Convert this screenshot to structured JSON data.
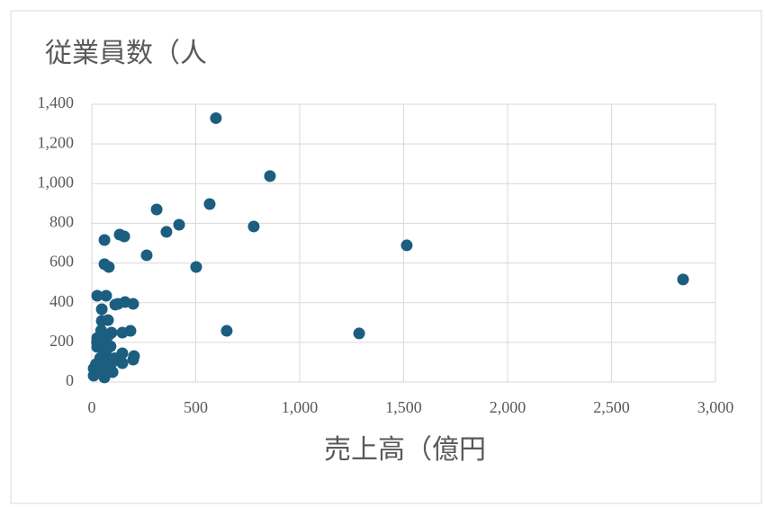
{
  "chart_data": {
    "type": "scatter",
    "title": "従業員数（人",
    "x_label": "売上高（億円",
    "color": "#1b5e80",
    "grid": true,
    "xlim": [
      0,
      3000
    ],
    "xticks": [
      0,
      500,
      {
        "value": 1000,
        "label": "1,000"
      },
      {
        "value": 1500,
        "label": "1,500"
      },
      {
        "value": 2000,
        "label": "2,000"
      },
      {
        "value": 2500,
        "label": "2,500"
      },
      {
        "value": 3000,
        "label": "3,000"
      }
    ],
    "ylim": [
      0,
      1400
    ],
    "yticks": [
      0,
      200,
      400,
      600,
      800,
      {
        "value": 1000,
        "label": "1,000"
      },
      {
        "value": 1200,
        "label": "1,200"
      },
      {
        "value": 1400,
        "label": "1,400"
      }
    ],
    "x": [
      597,
      857,
      312,
      567,
      359,
      420,
      779,
      134,
      156,
      61,
      264,
      61,
      82,
      502,
      1515,
      2844,
      26,
      69,
      113,
      126,
      160,
      199,
      48,
      48,
      78,
      649,
      1286,
      186,
      147,
      95,
      26,
      26,
      203,
      199,
      147,
      147,
      95,
      9,
      61,
      9,
      30,
      50,
      70,
      40,
      60,
      80,
      20,
      50,
      90,
      70,
      35,
      100,
      60,
      15,
      85,
      45,
      25,
      110
    ],
    "y": [
      1330,
      1038,
      870,
      897,
      757,
      793,
      784,
      743,
      734,
      716,
      639,
      594,
      580,
      580,
      689,
      517,
      435,
      435,
      390,
      394,
      403,
      394,
      367,
      308,
      312,
      258,
      245,
      258,
      249,
      249,
      222,
      177,
      131,
      113,
      145,
      95,
      95,
      32,
      23,
      68,
      180,
      200,
      160,
      120,
      140,
      110,
      90,
      60,
      180,
      220,
      50,
      50,
      80,
      40,
      240,
      260,
      200,
      120
    ]
  }
}
